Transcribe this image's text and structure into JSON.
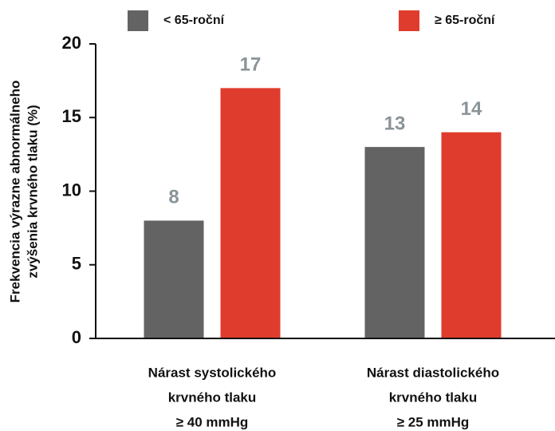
{
  "chart_data": {
    "type": "bar",
    "ylabel": [
      "Frekvencia výrazne abnormálneho",
      "zvýšenia krvného tlaku (%)"
    ],
    "categories": [
      [
        "Nárast systolického",
        "krvného tlaku",
        "≥ 40 mmHg"
      ],
      [
        "Nárast diastolického",
        "krvného tlaku",
        "≥ 25 mmHg"
      ]
    ],
    "series": [
      {
        "name": "< 65-roční",
        "color": "#636363",
        "values": [
          8,
          13
        ]
      },
      {
        "name": "≥ 65-roční",
        "color": "#e03c2d",
        "values": [
          17,
          14
        ]
      }
    ],
    "ylim": [
      0,
      20
    ],
    "yticks": [
      0,
      5,
      10,
      15,
      20
    ],
    "legend": "top"
  }
}
